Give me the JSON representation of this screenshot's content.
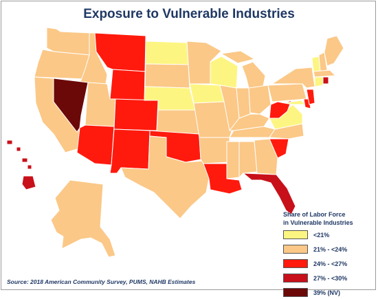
{
  "title": "Exposure to Vulnerable Industries",
  "legend": {
    "title_line1": "Share of Labor Force",
    "title_line2": "in Vulnerable Industries",
    "items": [
      {
        "label": "<21%",
        "color": "#fdf581",
        "key": "a"
      },
      {
        "label": "21% - <24%",
        "color": "#fbc887",
        "key": "b"
      },
      {
        "label": "24% - <27%",
        "color": "#ff1a0d",
        "key": "c"
      },
      {
        "label": "27% - <30%",
        "color": "#c8101a",
        "key": "d"
      },
      {
        "label": "39% (NV)",
        "color": "#6b0909",
        "key": "e"
      }
    ]
  },
  "source": "Source: 2018 American Community Survey, PUMS, NAHB Estimates",
  "states": {
    "AL": "b",
    "AK": "b",
    "AZ": "c",
    "AR": "b",
    "CA": "b",
    "CO": "c",
    "CT": "a",
    "DE": "c",
    "FL": "d",
    "GA": "b",
    "HI": "d",
    "ID": "b",
    "IL": "b",
    "IN": "b",
    "IA": "a",
    "KS": "b",
    "KY": "b",
    "LA": "c",
    "ME": "b",
    "MD": "a",
    "MA": "b",
    "MI": "b",
    "MN": "b",
    "MS": "b",
    "MO": "b",
    "MT": "c",
    "NE": "a",
    "NV": "e",
    "NH": "b",
    "NJ": "c",
    "NM": "c",
    "NY": "b",
    "NC": "b",
    "ND": "a",
    "OH": "b",
    "OK": "c",
    "OR": "b",
    "PA": "b",
    "RI": "d",
    "SC": "c",
    "SD": "b",
    "TN": "b",
    "TX": "b",
    "UT": "b",
    "VT": "a",
    "VA": "a",
    "WA": "b",
    "WV": "c",
    "WI": "a",
    "WY": "c"
  }
}
